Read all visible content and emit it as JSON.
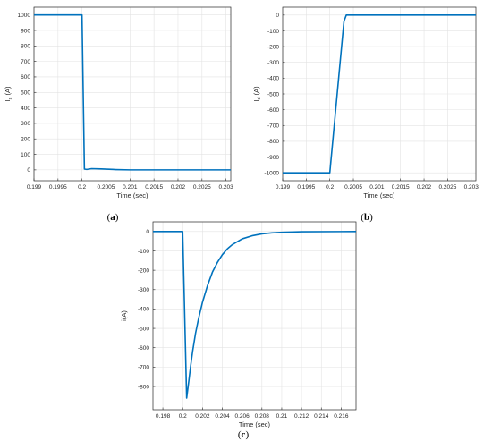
{
  "colors": {
    "line": "#0072BD",
    "grid": "#e3e3e3",
    "axis": "#262626",
    "background": "#ffffff"
  },
  "chart_data": [
    {
      "type": "line",
      "panel_label": "(a)",
      "xlabel": "Time (sec)",
      "ylabel": "I_s (A)",
      "ylabel_main": "I",
      "ylabel_sub": "s",
      "ylabel_unit": " (A)",
      "xlim": [
        0.199,
        0.2031
      ],
      "ylim": [
        -70,
        1050
      ],
      "grid": true,
      "xticks": [
        0.199,
        0.1995,
        0.2,
        0.2005,
        0.201,
        0.2015,
        0.202,
        0.2025,
        0.203
      ],
      "xtick_labels": [
        "0.199",
        "0.1995",
        "0.2",
        "0.2005",
        "0.201",
        "0.2015",
        "0.202",
        "0.2025",
        "0.203"
      ],
      "yticks": [
        0,
        100,
        200,
        300,
        400,
        500,
        600,
        700,
        800,
        900,
        1000
      ],
      "ytick_labels": [
        "0",
        "100",
        "200",
        "300",
        "400",
        "500",
        "600",
        "700",
        "800",
        "900",
        "1000"
      ],
      "series": [
        {
          "x": [
            0.199,
            0.2,
            0.20002,
            0.20005,
            0.2001,
            0.2002,
            0.2004,
            0.2007,
            0.201,
            0.2015,
            0.202,
            0.2025,
            0.2031
          ],
          "y": [
            1000,
            1000,
            600,
            5,
            3,
            8,
            6,
            2,
            0,
            0,
            0,
            0,
            0
          ]
        }
      ]
    },
    {
      "type": "line",
      "panel_label": "(b)",
      "xlabel": "Time (sec)",
      "ylabel": "I_d (A)",
      "ylabel_main": "I",
      "ylabel_sub": "d",
      "ylabel_unit": " (A)",
      "xlim": [
        0.199,
        0.2031
      ],
      "ylim": [
        -1050,
        50
      ],
      "grid": true,
      "xticks": [
        0.199,
        0.1995,
        0.2,
        0.2005,
        0.201,
        0.2015,
        0.202,
        0.2025,
        0.203
      ],
      "xtick_labels": [
        "0.199",
        "0.1995",
        "0.2",
        "0.2005",
        "0.201",
        "0.2015",
        "0.202",
        "0.2025",
        "0.203"
      ],
      "yticks": [
        -1000,
        -900,
        -800,
        -700,
        -600,
        -500,
        -400,
        -300,
        -200,
        -100,
        0
      ],
      "ytick_labels": [
        "-1000",
        "-900",
        "-800",
        "-700",
        "-600",
        "-500",
        "-400",
        "-300",
        "-200",
        "-100",
        "0"
      ],
      "series": [
        {
          "x": [
            0.199,
            0.2,
            0.2003,
            0.20035,
            0.2004,
            0.2031
          ],
          "y": [
            -1000,
            -1000,
            -40,
            0,
            0,
            0
          ]
        }
      ]
    },
    {
      "type": "line",
      "panel_label": "(c)",
      "xlabel": "Time (sec)",
      "ylabel": "i(A)",
      "xlim": [
        0.197,
        0.2175
      ],
      "ylim": [
        -920,
        50
      ],
      "grid": true,
      "xticks": [
        0.198,
        0.2,
        0.202,
        0.204,
        0.206,
        0.208,
        0.21,
        0.212,
        0.214,
        0.216
      ],
      "xtick_labels": [
        "0.198",
        "0.2",
        "0.202",
        "0.204",
        "0.206",
        "0.208",
        "0.21",
        "0.212",
        "0.214",
        "0.216"
      ],
      "yticks": [
        -800,
        -700,
        -600,
        -500,
        -400,
        -300,
        -200,
        -100,
        0
      ],
      "ytick_labels": [
        "-800",
        "-700",
        "-600",
        "-500",
        "-400",
        "-300",
        "-200",
        "-100",
        "0"
      ],
      "series": [
        {
          "x": [
            0.197,
            0.2,
            0.2004,
            0.2006,
            0.2008,
            0.201,
            0.2013,
            0.2016,
            0.202,
            0.2025,
            0.203,
            0.2035,
            0.204,
            0.2045,
            0.205,
            0.206,
            0.207,
            0.208,
            0.209,
            0.21,
            0.212,
            0.2175
          ],
          "y": [
            0,
            0,
            -860,
            -780,
            -695,
            -620,
            -525,
            -450,
            -365,
            -280,
            -210,
            -160,
            -120,
            -90,
            -68,
            -38,
            -22,
            -12,
            -7,
            -4,
            -1,
            0
          ]
        }
      ]
    }
  ]
}
